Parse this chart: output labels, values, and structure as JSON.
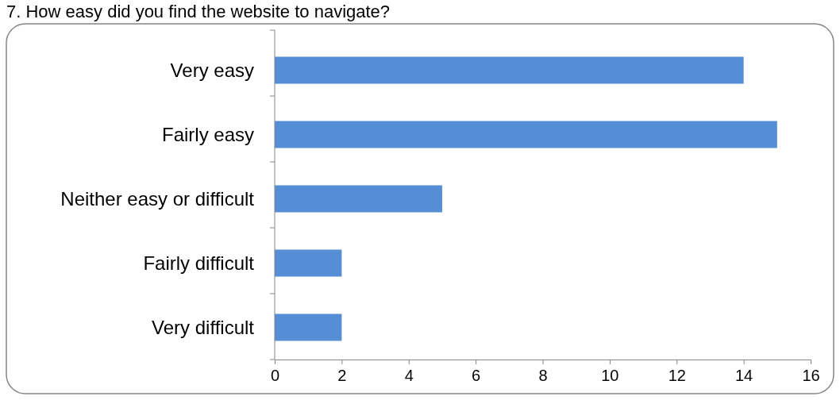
{
  "chart_data": {
    "type": "bar",
    "orientation": "horizontal",
    "title": "7. How easy did you find the website to navigate?",
    "categories": [
      "Very easy",
      "Fairly easy",
      "Neither easy or difficult",
      "Fairly difficult",
      "Very difficult"
    ],
    "values": [
      14,
      15,
      5,
      2,
      2
    ],
    "color": "#558ed5",
    "xlim": [
      0,
      16
    ],
    "xticks": [
      0,
      2,
      4,
      6,
      8,
      10,
      12,
      14,
      16
    ],
    "grid": false
  }
}
